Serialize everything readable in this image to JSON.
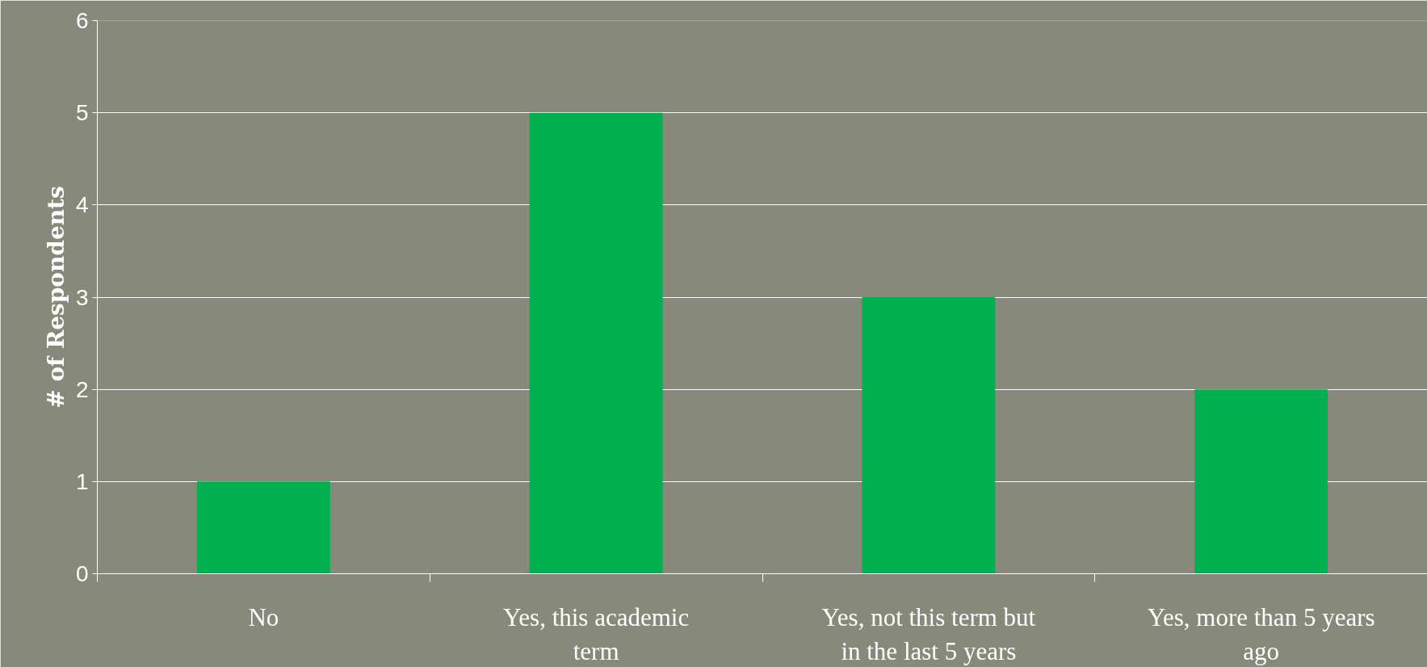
{
  "chart_data": {
    "type": "bar",
    "ylabel": "# of Respondents",
    "categories": [
      "No",
      "Yes, this academic term",
      "Yes, not this term but in the last 5 years",
      "Yes, more than 5 years ago"
    ],
    "values": [
      1,
      5,
      3,
      2
    ],
    "color": "#00b050",
    "ylim": [
      0,
      6
    ],
    "yticks": [
      0,
      1,
      2,
      3,
      4,
      5,
      6
    ],
    "grid": "y"
  }
}
